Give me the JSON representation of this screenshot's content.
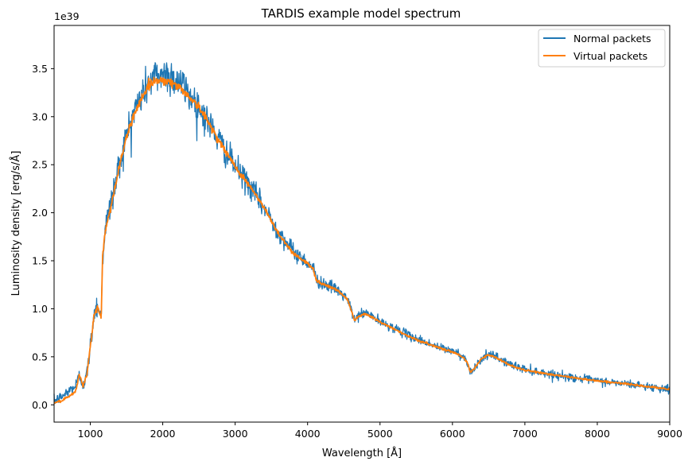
{
  "chart_data": {
    "type": "line",
    "title": "TARDIS example model spectrum",
    "xlabel": "Wavelength [Å]",
    "ylabel": "Luminosity density [erg/s/Å]",
    "y_offset_label": "1e39",
    "xlim": [
      500,
      9000
    ],
    "ylim": [
      -0.18,
      3.95
    ],
    "x_ticks": [
      1000,
      2000,
      3000,
      4000,
      5000,
      6000,
      7000,
      8000,
      9000
    ],
    "x_tick_labels": [
      "1000",
      "2000",
      "3000",
      "4000",
      "5000",
      "6000",
      "7000",
      "8000",
      "9000"
    ],
    "y_ticks": [
      0.0,
      0.5,
      1.0,
      1.5,
      2.0,
      2.5,
      3.0,
      3.5
    ],
    "y_tick_labels": [
      "0.0",
      "0.5",
      "1.0",
      "1.5",
      "2.0",
      "2.5",
      "3.0",
      "3.5"
    ],
    "grid": false,
    "legend_position": "top-right",
    "series": [
      {
        "name": "Normal packets",
        "color": "#1f77b4",
        "noise": "high",
        "x": [
          500,
          600,
          700,
          800,
          850,
          900,
          950,
          1000,
          1050,
          1100,
          1150,
          1170,
          1200,
          1300,
          1400,
          1500,
          1600,
          1700,
          1800,
          1900,
          2000,
          2100,
          2200,
          2300,
          2400,
          2500,
          2600,
          2700,
          2800,
          2900,
          3000,
          3200,
          3400,
          3600,
          3800,
          4000,
          4080,
          4120,
          4200,
          4400,
          4550,
          4650,
          4700,
          4800,
          4900,
          5000,
          5200,
          5400,
          5600,
          5800,
          6000,
          6100,
          6200,
          6250,
          6300,
          6400,
          6500,
          6600,
          6800,
          7000,
          7500,
          8000,
          8500,
          9000
        ],
        "y": [
          0.04,
          0.08,
          0.14,
          0.2,
          0.3,
          0.22,
          0.3,
          0.6,
          0.95,
          1.05,
          0.9,
          1.55,
          1.8,
          2.15,
          2.5,
          2.8,
          3.05,
          3.2,
          3.35,
          3.42,
          3.45,
          3.43,
          3.38,
          3.3,
          3.2,
          3.1,
          2.98,
          2.85,
          2.72,
          2.6,
          2.48,
          2.28,
          2.05,
          1.8,
          1.6,
          1.48,
          1.42,
          1.3,
          1.27,
          1.2,
          1.1,
          0.88,
          0.93,
          0.96,
          0.92,
          0.86,
          0.8,
          0.72,
          0.66,
          0.6,
          0.56,
          0.53,
          0.46,
          0.34,
          0.38,
          0.48,
          0.52,
          0.5,
          0.42,
          0.37,
          0.3,
          0.25,
          0.21,
          0.16
        ]
      },
      {
        "name": "Virtual packets",
        "color": "#ff7f0e",
        "noise": "low",
        "x": [
          500,
          600,
          700,
          800,
          850,
          900,
          950,
          1000,
          1050,
          1100,
          1150,
          1170,
          1200,
          1300,
          1400,
          1500,
          1600,
          1700,
          1800,
          1900,
          2000,
          2100,
          2200,
          2300,
          2400,
          2500,
          2600,
          2700,
          2800,
          2900,
          3000,
          3200,
          3400,
          3600,
          3800,
          4000,
          4080,
          4120,
          4200,
          4400,
          4550,
          4650,
          4700,
          4800,
          4900,
          5000,
          5200,
          5400,
          5600,
          5800,
          6000,
          6100,
          6200,
          6250,
          6300,
          6400,
          6500,
          6600,
          6800,
          7000,
          7500,
          8000,
          8500,
          9000
        ],
        "y": [
          0.02,
          0.04,
          0.08,
          0.14,
          0.32,
          0.2,
          0.3,
          0.6,
          0.92,
          1.02,
          0.9,
          1.55,
          1.78,
          2.12,
          2.48,
          2.78,
          3.02,
          3.18,
          3.32,
          3.38,
          3.38,
          3.36,
          3.32,
          3.26,
          3.18,
          3.1,
          2.98,
          2.85,
          2.72,
          2.6,
          2.48,
          2.28,
          2.05,
          1.78,
          1.58,
          1.47,
          1.41,
          1.3,
          1.26,
          1.2,
          1.1,
          0.88,
          0.92,
          0.95,
          0.91,
          0.86,
          0.79,
          0.71,
          0.65,
          0.6,
          0.55,
          0.52,
          0.45,
          0.34,
          0.38,
          0.48,
          0.52,
          0.49,
          0.41,
          0.36,
          0.3,
          0.25,
          0.21,
          0.16
        ]
      }
    ]
  }
}
